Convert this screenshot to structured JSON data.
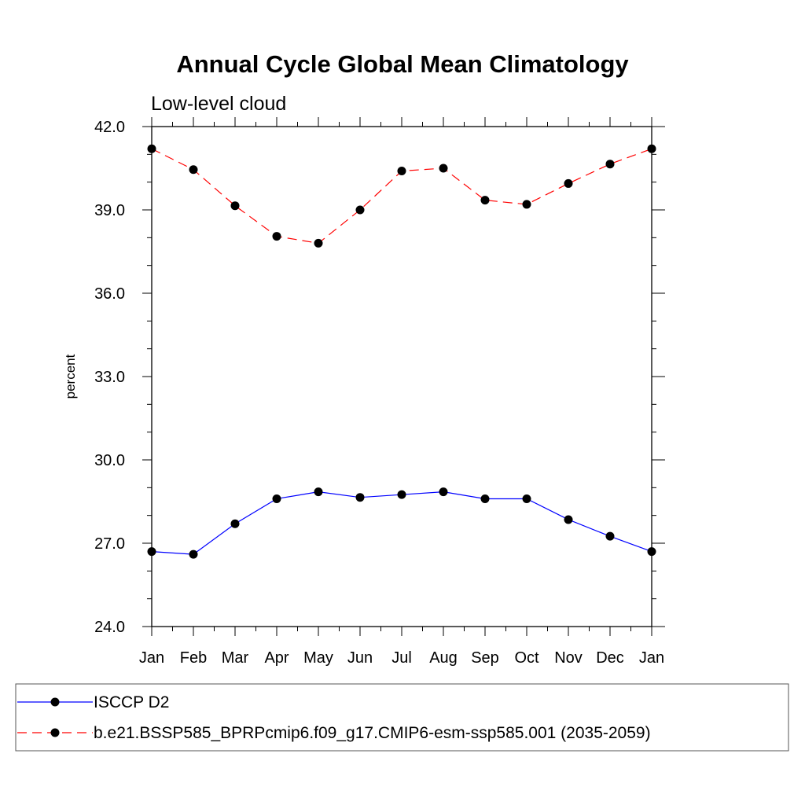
{
  "chart_data": {
    "type": "line",
    "title": "Annual Cycle Global Mean Climatology",
    "subtitle": "Low-level cloud",
    "xlabel": "",
    "ylabel": "percent",
    "categories": [
      "Jan",
      "Feb",
      "Mar",
      "Apr",
      "May",
      "Jun",
      "Jul",
      "Aug",
      "Sep",
      "Oct",
      "Nov",
      "Dec",
      "Jan"
    ],
    "ylim": [
      24.0,
      42.0
    ],
    "yticks": [
      "24.0",
      "27.0",
      "30.0",
      "33.0",
      "36.0",
      "39.0",
      "42.0"
    ],
    "grid": false,
    "legend_position": "bottom",
    "series": [
      {
        "name": "ISCCP D2",
        "color": "#0000ff",
        "line_style": "solid",
        "marker": "filled-circle",
        "values": [
          26.7,
          26.6,
          27.7,
          28.6,
          28.85,
          28.65,
          28.75,
          28.85,
          28.6,
          28.6,
          27.85,
          27.25,
          26.7
        ]
      },
      {
        "name": "b.e21.BSSP585_BPRPcmip6.f09_g17.CMIP6-esm-ssp585.001 (2035-2059)",
        "color": "#ff0000",
        "line_style": "dashed",
        "marker": "filled-circle",
        "values": [
          41.2,
          40.45,
          39.15,
          38.05,
          37.8,
          39.0,
          40.4,
          40.5,
          39.35,
          39.2,
          39.95,
          40.65,
          41.2
        ]
      }
    ]
  }
}
